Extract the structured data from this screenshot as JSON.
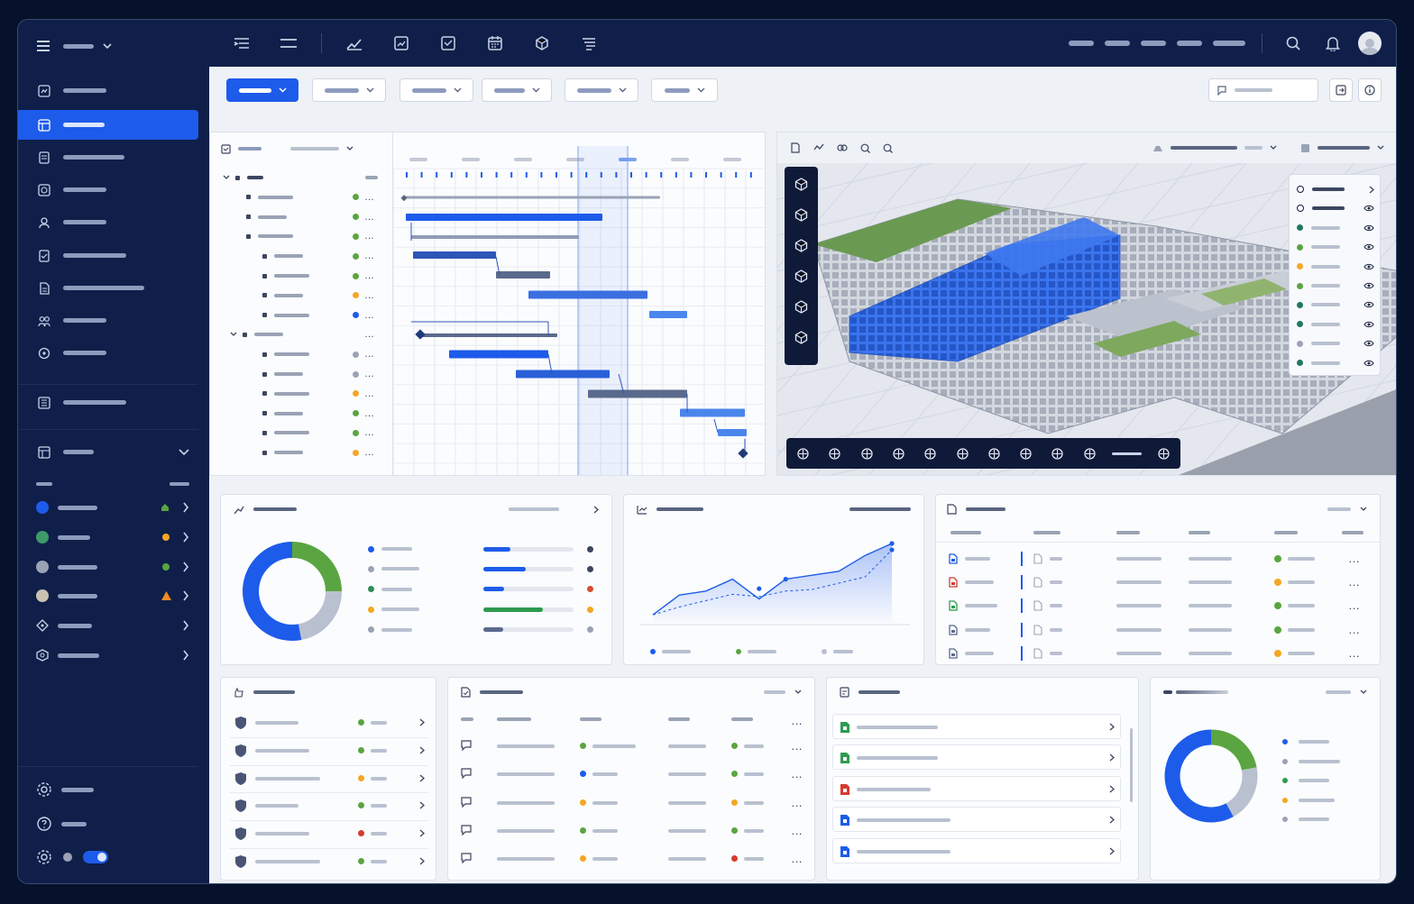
{
  "app": {
    "workspace_label": ""
  },
  "colors": {
    "accent": "#1d5bea",
    "sidebar": "#0f1f49",
    "green": "#5aa541",
    "orange": "#f5a623",
    "red": "#d63b2f",
    "grey": "#9aa3b5"
  },
  "sidebar": {
    "menu_icon": "hamburger-icon",
    "items": [
      {
        "icon": "dashboard-icon",
        "active": false
      },
      {
        "icon": "schedule-icon",
        "active": true
      },
      {
        "icon": "document-icon",
        "active": false
      },
      {
        "icon": "refresh-icon",
        "active": false
      },
      {
        "icon": "people-icon",
        "active": false
      },
      {
        "icon": "checklist-icon",
        "active": false
      },
      {
        "icon": "file-icon",
        "active": false
      },
      {
        "icon": "team-icon",
        "active": false
      },
      {
        "icon": "target-icon",
        "active": false
      }
    ],
    "reports_icon": "report-icon",
    "projects_icon": "projects-icon",
    "projects": [
      {
        "color": "#1d5bea",
        "status": "home-icon"
      },
      {
        "color": "#5aa541",
        "status": "orange-dot"
      },
      {
        "color": "#9aa3b5",
        "status": "green-dot"
      },
      {
        "color": "#c9c2b0",
        "status": "warning-icon"
      },
      {
        "color": "",
        "status": ""
      },
      {
        "color": "",
        "status": ""
      }
    ],
    "footer": [
      "settings-icon",
      "help-icon",
      "gear-icon"
    ],
    "toggle_on": true
  },
  "topbar": {
    "icons": [
      "list-indent-icon",
      "menu-lines-icon",
      "chart-line-icon",
      "edit-chart-icon",
      "inbox-icon",
      "calendar-icon",
      "cube-icon",
      "stack-icon"
    ],
    "right_icons": [
      "search-icon",
      "bell-icon",
      "avatar"
    ]
  },
  "toolbar": {
    "filters_count": 5,
    "search_placeholder": ""
  },
  "gantt": {
    "rows": [
      {
        "level": 0,
        "status": ""
      },
      {
        "level": 1,
        "status": "#5aa541"
      },
      {
        "level": 1,
        "status": "#5aa541"
      },
      {
        "level": 1,
        "status": "#5aa541"
      },
      {
        "level": 2,
        "status": "#5aa541"
      },
      {
        "level": 2,
        "status": "#5aa541"
      },
      {
        "level": 2,
        "status": "#f5a623"
      },
      {
        "level": 2,
        "status": "#1d5bea"
      },
      {
        "level": 1,
        "status": ""
      },
      {
        "level": 2,
        "status": "#9aa3b5"
      },
      {
        "level": 2,
        "status": "#9aa3b5"
      },
      {
        "level": 2,
        "status": "#f5a623"
      },
      {
        "level": 2,
        "status": "#5aa541"
      },
      {
        "level": 2,
        "status": "#5aa541"
      },
      {
        "level": 2,
        "status": "#f5a623"
      }
    ]
  },
  "viewer": {
    "tools": [
      "cube-icon",
      "layers-icon",
      "box-icon",
      "shield-cube-icon",
      "section-icon",
      "measure-icon"
    ],
    "bottom_tools": [
      "layers-plus-icon",
      "orbit-icon",
      "pan-icon",
      "look-icon",
      "fit-icon",
      "focus-icon",
      "frame-icon",
      "globe-icon",
      "expand-icon",
      "zoom-out-icon",
      "zoom-in-icon"
    ],
    "layer_statuses": [
      "#0e1d44",
      "#0e1d44",
      "#1f7a5a",
      "#5aa541",
      "#f5a623",
      "#5aa541",
      "#1f7a5a",
      "#1f7a5a",
      "#9aa3b5",
      "#1f7a5a"
    ]
  },
  "progress_card": {
    "donut": [
      {
        "color": "#5aa541",
        "value": 25
      },
      {
        "color": "#b9c1d0",
        "value": 22
      },
      {
        "color": "#1d5bea",
        "value": 53
      }
    ],
    "legend_colors": [
      "#1d5bea",
      "#9aa3b5",
      "#2e8b57",
      "#f5a623",
      "#9aa3b5"
    ],
    "bars": [
      {
        "fill": 0.3,
        "color": "#1d5bea",
        "dot": "#3c4660"
      },
      {
        "fill": 0.47,
        "color": "#1d5bea",
        "dot": "#3c4660"
      },
      {
        "fill": 0.23,
        "color": "#1d5bea",
        "dot": "#d64e2f"
      },
      {
        "fill": 0.66,
        "color": "#2e9a50",
        "dot": "#f5a623"
      },
      {
        "fill": 0.22,
        "color": "#5a6a8c",
        "dot": "#9aa3b5"
      }
    ]
  },
  "trend_card": {
    "actual": [
      0.1,
      0.35,
      0.4,
      0.55,
      0.3,
      0.55,
      0.6,
      0.65,
      0.85,
      1.0
    ],
    "planned": [
      0.1,
      0.2,
      0.28,
      0.36,
      0.33,
      0.4,
      0.42,
      0.5,
      0.58,
      0.92
    ],
    "legend_colors": [
      "#1d5bea",
      "#5aa541",
      "#b9c1d0"
    ]
  },
  "documents_card": {
    "file_colors": [
      "#1d5bea",
      "#d63b2f",
      "#2e9a50",
      "#5a6a8c",
      "#5a6a8c"
    ],
    "status_colors": [
      "#5aa541",
      "#f5a623",
      "#5aa541",
      "#5aa541",
      "#f5a623"
    ]
  },
  "safety_card": {
    "status_colors": [
      "#5aa541",
      "#5aa541",
      "#f5a623",
      "#5aa541",
      "#d63b2f",
      "#5aa541"
    ]
  },
  "issues_card": {
    "rows": [
      {
        "icon": "comment-icon",
        "a": "#5aa541",
        "b": "#5aa541"
      },
      {
        "icon": "search-comment-icon",
        "a": "#1d5bea",
        "b": "#5aa541"
      },
      {
        "icon": "comment-icon",
        "a": "#f5a623",
        "b": "#f5a623"
      },
      {
        "icon": "image-comment-icon",
        "a": "#5aa541",
        "b": "#5aa541"
      },
      {
        "icon": "comment-icon",
        "a": "#f5a623",
        "b": "#d63b2f"
      }
    ]
  },
  "files_card": {
    "file_colors": [
      "#2e9a50",
      "#2e9a50",
      "#d63b2f",
      "#1d5bea",
      "#1d5bea"
    ]
  },
  "budget_card": {
    "donut": [
      {
        "color": "#5aa541",
        "value": 22
      },
      {
        "color": "#b9c1d0",
        "value": 20
      },
      {
        "color": "#1d5bea",
        "value": 58
      }
    ],
    "legend_colors": [
      "#1d5bea",
      "#9aa3b5",
      "#2e9a50",
      "#f5a623",
      "#9aa3b5"
    ]
  }
}
